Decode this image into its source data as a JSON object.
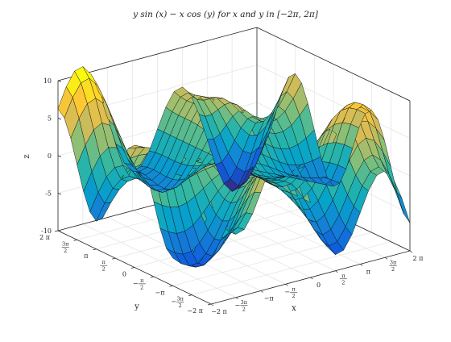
{
  "chart_data": {
    "type": "surface",
    "title": "y sin (x) − x cos (y) for x and y in [−2π, 2π]",
    "xlabel": "x",
    "ylabel": "y",
    "zlabel": "z",
    "xlim": [
      -6.2832,
      6.2832
    ],
    "ylim": [
      -6.2832,
      6.2832
    ],
    "zlim": [
      -10,
      10
    ],
    "grid": true,
    "colormap": "parula",
    "colormap_colors": [
      "#352a87",
      "#0f5cdd",
      "#1481d6",
      "#06a4ca",
      "#2eb7a4",
      "#87bf77",
      "#d1bb59",
      "#fec832",
      "#f9fb0e"
    ],
    "mesh_resolution": 25,
    "x_ticks": [
      {
        "value": -6.2832,
        "label": "−2 π"
      },
      {
        "value": -4.7124,
        "label": "−3π/2"
      },
      {
        "value": -3.1416,
        "label": "−π"
      },
      {
        "value": -1.5708,
        "label": "−π/2"
      },
      {
        "value": 0,
        "label": "0"
      },
      {
        "value": 1.5708,
        "label": "π/2"
      },
      {
        "value": 3.1416,
        "label": "π"
      },
      {
        "value": 4.7124,
        "label": "3π/2"
      },
      {
        "value": 6.2832,
        "label": "2 π"
      }
    ],
    "y_ticks": [
      {
        "value": 6.2832,
        "label": "2 π"
      },
      {
        "value": 4.7124,
        "label": "3π/2"
      },
      {
        "value": 3.1416,
        "label": "π"
      },
      {
        "value": 1.5708,
        "label": "π/2"
      },
      {
        "value": 0,
        "label": "0"
      },
      {
        "value": -1.5708,
        "label": "−π/2"
      },
      {
        "value": -3.1416,
        "label": "−π"
      },
      {
        "value": -4.7124,
        "label": "−3π/2"
      },
      {
        "value": -6.2832,
        "label": "−2 π"
      }
    ],
    "z_ticks": [
      {
        "value": 10,
        "label": "10"
      },
      {
        "value": 5,
        "label": "5"
      },
      {
        "value": 0,
        "label": "0"
      },
      {
        "value": -5,
        "label": "-5"
      },
      {
        "value": -10,
        "label": "-10"
      }
    ]
  }
}
